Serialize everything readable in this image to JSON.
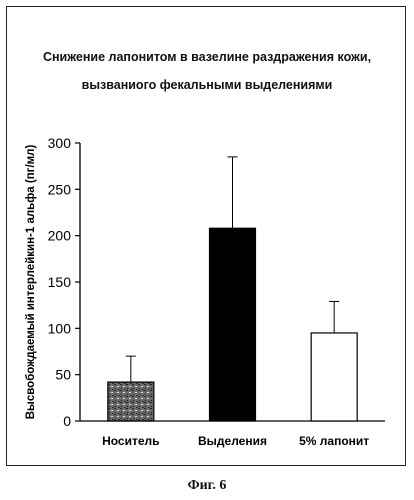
{
  "chart_data": {
    "type": "bar",
    "title_line1": "Снижение лапонитом в вазелине раздражения кожи,",
    "title_line2": "вызваниого фекальными выделениями",
    "ylabel": "Высвобождаемый интерлейкин-1 альфа (пг/мл)",
    "xlabel": "",
    "ylim": [
      0,
      300
    ],
    "yticks": [
      0,
      50,
      100,
      150,
      200,
      250,
      300
    ],
    "categories": [
      "Носитель",
      "Выделения",
      "5% лапонит"
    ],
    "values": [
      42,
      208,
      95
    ],
    "errors": [
      28,
      77,
      34
    ],
    "fills": [
      "pattern",
      "#000000",
      "#ffffff"
    ],
    "grid": false
  },
  "caption": "Фиг. 6"
}
